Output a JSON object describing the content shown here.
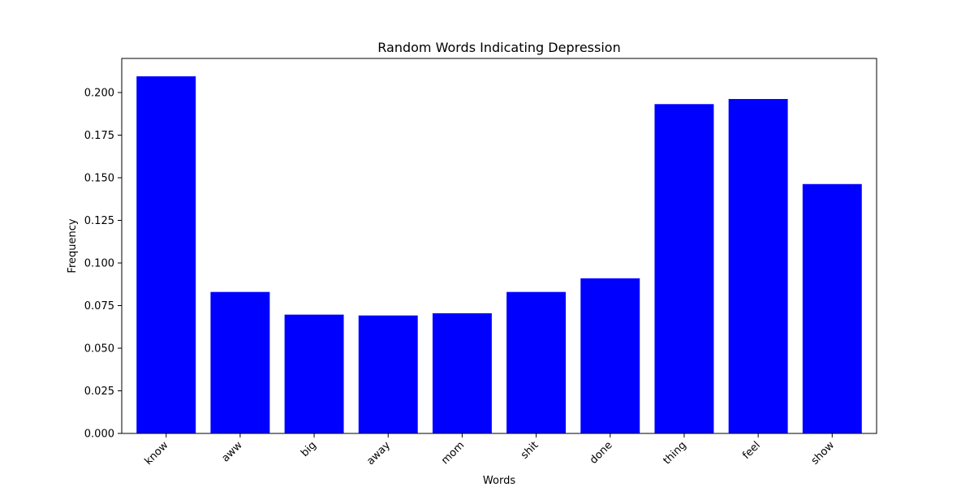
{
  "chart_data": {
    "type": "bar",
    "title": "Random Words Indicating Depression",
    "xlabel": "Words",
    "ylabel": "Frequency",
    "categories": [
      "know",
      "aww",
      "big",
      "away",
      "mom",
      "shit",
      "done",
      "thing",
      "feel",
      "show"
    ],
    "values": [
      0.2095,
      0.083,
      0.0697,
      0.0692,
      0.0705,
      0.083,
      0.091,
      0.1932,
      0.1962,
      0.1463
    ],
    "ylim": [
      0,
      0.22
    ],
    "yticks": [
      0,
      0.025,
      0.05,
      0.075,
      0.1,
      0.125,
      0.15,
      0.175,
      0.2
    ],
    "ytick_labels": [
      "0.000",
      "0.025",
      "0.050",
      "0.075",
      "0.100",
      "0.125",
      "0.150",
      "0.175",
      "0.200"
    ],
    "bar_color": "#0000ff",
    "grid": false,
    "legend": false
  }
}
